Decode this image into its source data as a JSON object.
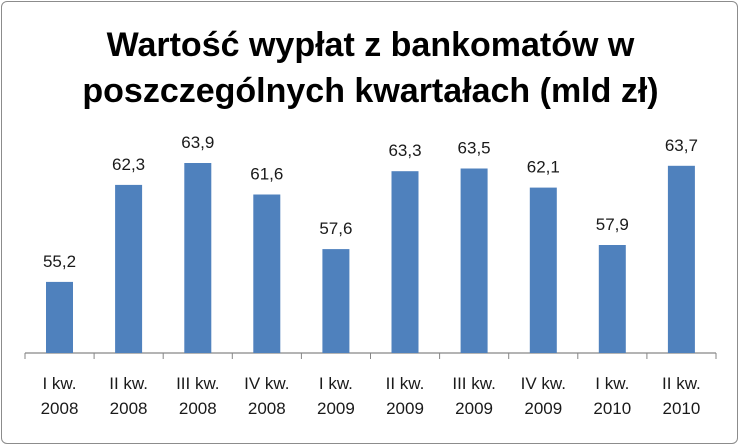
{
  "chart_data": {
    "type": "bar",
    "title_lines": [
      "Wartość wypłat z bankomatów w",
      "poszczególnych kwartałach (mld zł)"
    ],
    "categories": [
      [
        "I kw.",
        "2008"
      ],
      [
        "II kw.",
        "2008"
      ],
      [
        "III kw.",
        "2008"
      ],
      [
        "IV kw.",
        "2008"
      ],
      [
        "I kw.",
        "2009"
      ],
      [
        "II kw.",
        "2009"
      ],
      [
        "III kw.",
        "2009"
      ],
      [
        "IV kw.",
        "2009"
      ],
      [
        "I kw.",
        "2010"
      ],
      [
        "II kw.",
        "2010"
      ]
    ],
    "values": [
      55.2,
      62.3,
      63.9,
      61.6,
      57.6,
      63.3,
      63.5,
      62.1,
      57.9,
      63.7
    ],
    "value_labels": [
      "55,2",
      "62,3",
      "63,9",
      "61,6",
      "57,6",
      "63,3",
      "63,5",
      "62,1",
      "57,9",
      "63,7"
    ],
    "ylim": [
      50,
      65
    ],
    "bar_color": "#4f81bd",
    "axis_color": "#868686",
    "grid": false,
    "legend": "none"
  }
}
